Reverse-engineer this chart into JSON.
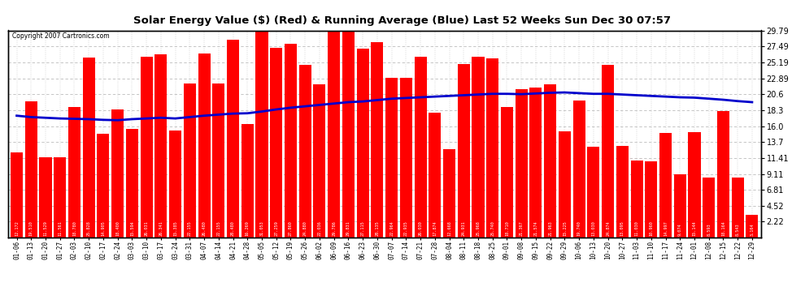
{
  "title": "Solar Energy Value ($) (Red) & Running Average (Blue) Last 52 Weeks Sun Dec 30 07:57",
  "copyright": "Copyright 2007 Cartronics.com",
  "bar_color": "#ff0000",
  "line_color": "#0000cc",
  "background_color": "#ffffff",
  "plot_bg_color": "#ffffff",
  "grid_color": "#bbbbbb",
  "ylim": [
    0,
    29.79
  ],
  "yticks_right": [
    2.22,
    4.52,
    6.81,
    9.11,
    11.41,
    13.7,
    16.0,
    18.3,
    20.6,
    22.89,
    25.19,
    27.49,
    29.79
  ],
  "labels": [
    "01-06",
    "01-13",
    "01-20",
    "01-27",
    "02-03",
    "02-10",
    "02-17",
    "02-24",
    "03-03",
    "03-10",
    "03-17",
    "03-24",
    "03-31",
    "04-07",
    "04-14",
    "04-21",
    "04-28",
    "05-05",
    "05-12",
    "05-19",
    "05-26",
    "06-02",
    "06-09",
    "06-16",
    "06-23",
    "06-30",
    "07-07",
    "07-14",
    "07-21",
    "07-28",
    "08-04",
    "08-11",
    "08-18",
    "08-25",
    "09-01",
    "09-08",
    "09-15",
    "09-22",
    "09-29",
    "10-06",
    "10-13",
    "10-20",
    "10-27",
    "11-03",
    "11-10",
    "11-17",
    "11-24",
    "12-01",
    "12-08",
    "12-15",
    "12-22",
    "12-29"
  ],
  "values": [
    12.172,
    19.51,
    11.529,
    11.561,
    18.78,
    25.828,
    14.905,
    18.4,
    15.594,
    26.031,
    26.341,
    15.385,
    22.155,
    26.48,
    22.155,
    28.48,
    16.269,
    31.053,
    27.259,
    27.86,
    24.88,
    22.036,
    29.786,
    29.831,
    27.115,
    28.135,
    22.964,
    22.935,
    26.03,
    17.874,
    12.668,
    24.931,
    25.968,
    25.74,
    18.71,
    21.367,
    21.574,
    21.963,
    15.225,
    19.74,
    13.03,
    24.874,
    13.095,
    11.03,
    10.96,
    14.997,
    9.074,
    15.144,
    8.593,
    18.164,
    8.543,
    3.164
  ],
  "bar_values_display": [
    "12.172",
    "19.510",
    "11.529",
    "11.561",
    "18.780",
    "25.828",
    "14.905",
    "18.400",
    "15.594",
    "26.031",
    "26.341",
    "15.385",
    "22.155",
    "26.480",
    "22.155",
    "28.480",
    "16.269",
    "31.053",
    "27.259",
    "27.860",
    "24.880",
    "22.036",
    "29.786",
    "29.831",
    "27.115",
    "28.135",
    "22.964",
    "22.935",
    "26.030",
    "17.874",
    "12.668",
    "24.931",
    "25.968",
    "25.740",
    "18.710",
    "21.367",
    "21.574",
    "21.963",
    "15.225",
    "19.740",
    "13.030",
    "24.874",
    "13.095",
    "11.030",
    "10.960",
    "14.997",
    "9.074",
    "15.144",
    "8.593",
    "18.164",
    "8.543",
    "3.164"
  ],
  "running_avg": [
    17.5,
    17.3,
    17.2,
    17.1,
    17.05,
    17.0,
    16.9,
    16.85,
    17.0,
    17.1,
    17.2,
    17.1,
    17.3,
    17.5,
    17.65,
    17.8,
    17.85,
    18.1,
    18.4,
    18.65,
    18.85,
    19.05,
    19.25,
    19.45,
    19.55,
    19.75,
    19.95,
    20.05,
    20.15,
    20.25,
    20.35,
    20.45,
    20.55,
    20.65,
    20.65,
    20.6,
    20.7,
    20.8,
    20.85,
    20.75,
    20.65,
    20.65,
    20.55,
    20.45,
    20.35,
    20.25,
    20.15,
    20.1,
    19.95,
    19.8,
    19.6,
    19.45
  ]
}
